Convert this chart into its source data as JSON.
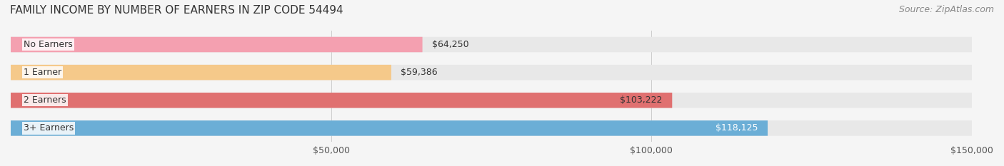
{
  "title": "FAMILY INCOME BY NUMBER OF EARNERS IN ZIP CODE 54494",
  "source": "Source: ZipAtlas.com",
  "categories": [
    "No Earners",
    "1 Earner",
    "2 Earners",
    "3+ Earners"
  ],
  "values": [
    64250,
    59386,
    103222,
    118125
  ],
  "bar_colors": [
    "#f4a0b0",
    "#f5c98a",
    "#e07070",
    "#6baed6"
  ],
  "label_colors": [
    "#333333",
    "#333333",
    "#333333",
    "#ffffff"
  ],
  "value_labels": [
    "$64,250",
    "$59,386",
    "$103,222",
    "$118,125"
  ],
  "xlim": [
    0,
    150000
  ],
  "xticks": [
    50000,
    100000,
    150000
  ],
  "xtick_labels": [
    "$50,000",
    "$100,000",
    "$150,000"
  ],
  "background_color": "#f5f5f5",
  "bar_background_color": "#e8e8e8",
  "title_fontsize": 11,
  "source_fontsize": 9,
  "label_fontsize": 9,
  "value_fontsize": 9,
  "tick_fontsize": 9
}
